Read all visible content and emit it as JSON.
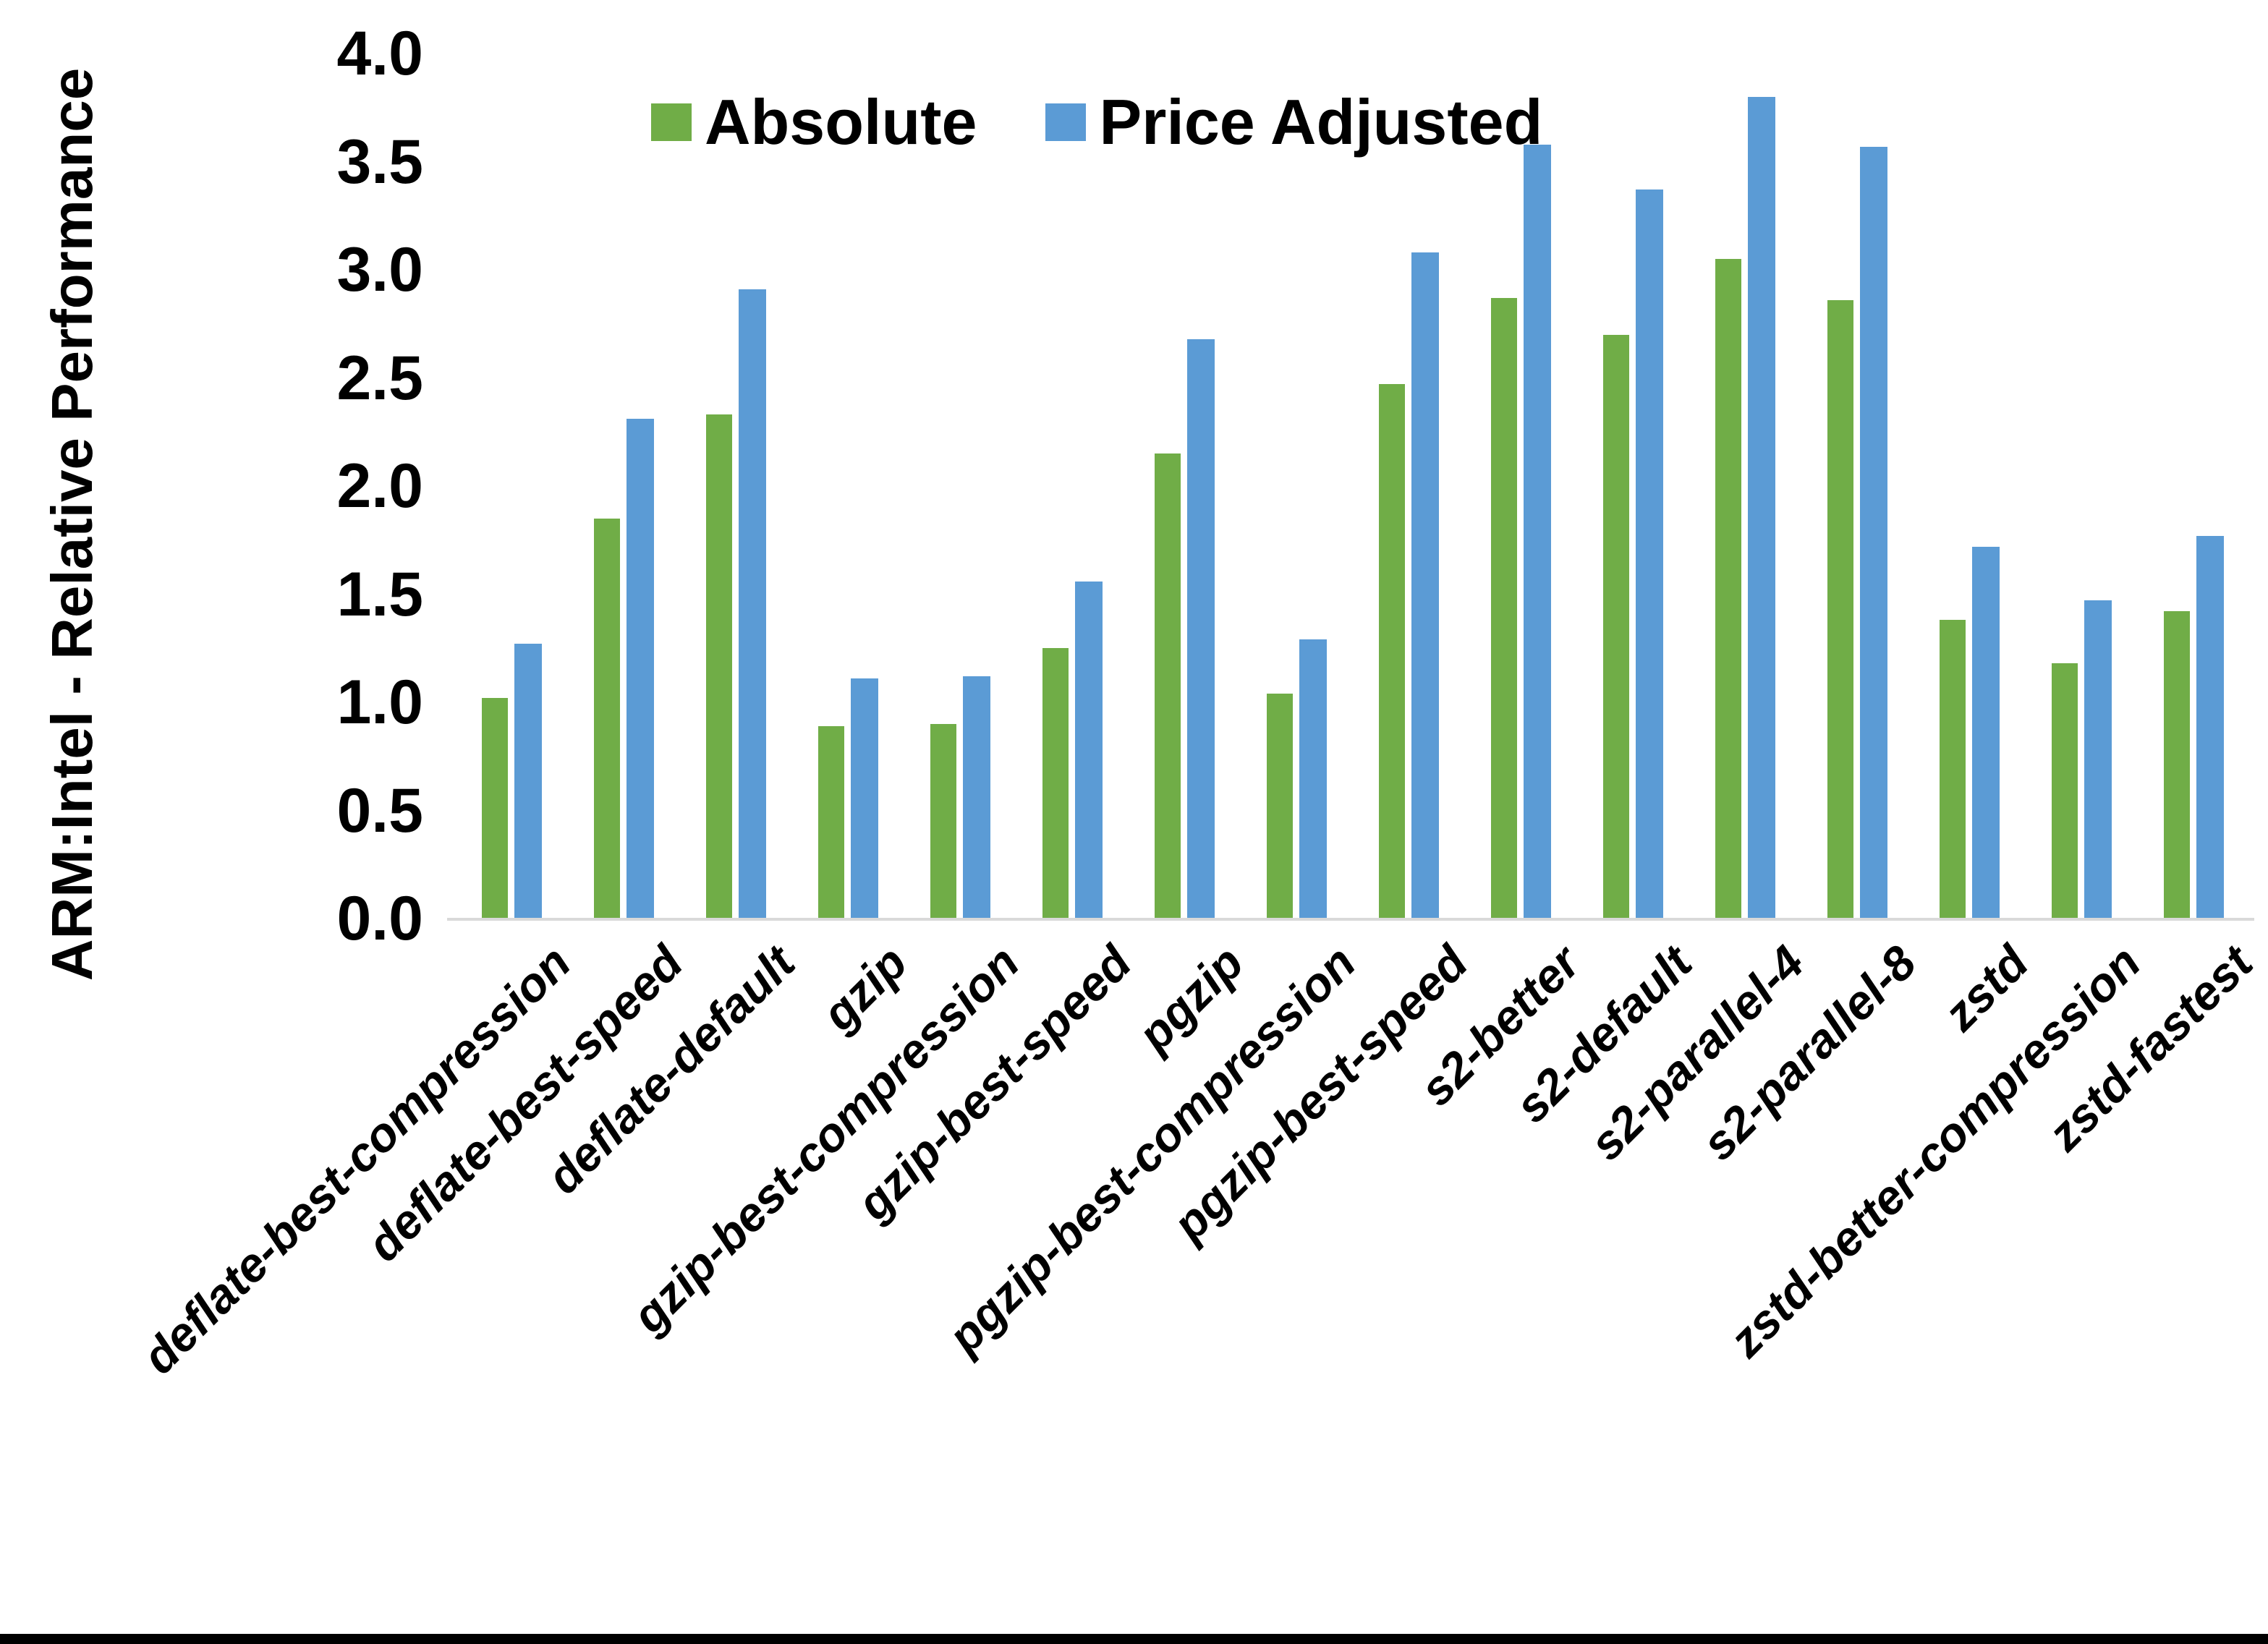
{
  "chart_data": {
    "type": "bar",
    "ylabel": "ARM:Intel - Relative Performance",
    "xlabel": "",
    "title": "",
    "ylim": [
      0.0,
      4.0
    ],
    "ytick_step": 0.5,
    "yticks": [
      "0.0",
      "0.5",
      "1.0",
      "1.5",
      "2.0",
      "2.5",
      "3.0",
      "3.5",
      "4.0"
    ],
    "grid": "off",
    "legend_position": "top-center",
    "categories": [
      "deflate-best-compression",
      "deflate-best-speed",
      "deflate-default",
      "gzip",
      "gzip-best-compression",
      "gzip-best-speed",
      "pgzip",
      "pgzip-best-compression",
      "pgzip-best-speed",
      "s2-better",
      "s2-default",
      "s2-parallel-4",
      "s2-parallel-8",
      "zstd",
      "zstd-better-compression",
      "zstd-fastest"
    ],
    "series": [
      {
        "name": "Absolute",
        "color": "#70AD47",
        "values": [
          1.02,
          1.85,
          2.33,
          0.89,
          0.9,
          1.25,
          2.15,
          1.04,
          2.47,
          2.87,
          2.7,
          3.05,
          2.86,
          1.38,
          1.18,
          1.42
        ]
      },
      {
        "name": "Price Adjusted",
        "color": "#5B9BD5",
        "values": [
          1.27,
          2.31,
          2.91,
          1.11,
          1.12,
          1.56,
          2.68,
          1.29,
          3.08,
          3.58,
          3.37,
          3.8,
          3.57,
          1.72,
          1.47,
          1.77
        ]
      }
    ],
    "colors": {
      "axis_line": "#d9d9d9",
      "text": "#000000",
      "background": "#ffffff",
      "bottom_border": "#000000"
    }
  }
}
